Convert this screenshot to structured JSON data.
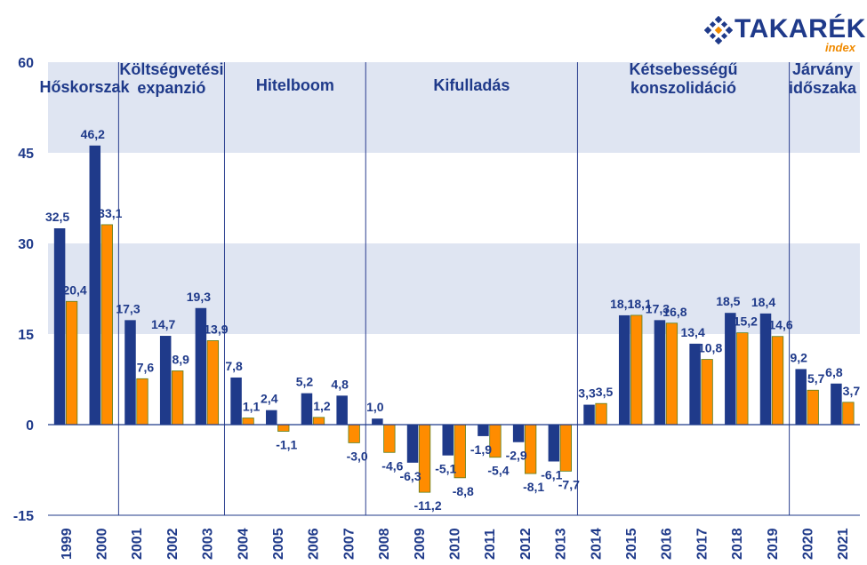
{
  "logo": {
    "brand": "TAKARÉK",
    "sub": "index",
    "accent": "#f08a00",
    "primary": "#1f3a8a"
  },
  "chart_data": {
    "type": "bar",
    "categories": [
      "1999",
      "2000",
      "2001",
      "2002",
      "2003",
      "2004",
      "2005",
      "2006",
      "2007",
      "2008",
      "2009",
      "2010",
      "2011",
      "2012",
      "2013",
      "2014",
      "2015",
      "2016",
      "2017",
      "2018",
      "2019",
      "2020",
      "2021"
    ],
    "series": [
      {
        "values": [
          32.5,
          46.2,
          17.3,
          14.7,
          19.3,
          7.8,
          2.4,
          5.2,
          4.8,
          1.0,
          -6.3,
          -5.1,
          -1.9,
          -2.9,
          -6.1,
          3.3,
          18.1,
          17.3,
          13.4,
          18.5,
          18.4,
          9.2,
          6.8
        ],
        "color": "#1f3a8a"
      },
      {
        "values": [
          20.4,
          33.1,
          7.6,
          8.9,
          13.9,
          1.1,
          -1.1,
          1.2,
          -3.0,
          -4.6,
          -11.2,
          -8.8,
          -5.4,
          -8.1,
          -7.7,
          3.5,
          18.1,
          16.8,
          10.8,
          15.2,
          14.6,
          5.7,
          3.7
        ],
        "color": "#ff8c00"
      }
    ],
    "labels": [
      [
        "32,5",
        "46,2",
        "17,3",
        "14,7",
        "19,3",
        "7,8",
        "2,4",
        "5,2",
        "4,8",
        "1,0",
        "-6,3",
        "-5,1",
        "-1,9",
        "-2,9",
        "-6,1",
        "3,3",
        "18,1",
        "17,3",
        "13,4",
        "18,5",
        "18,4",
        "9,2",
        "6,8"
      ],
      [
        "20,4",
        "33,1",
        "7,6",
        "8,9",
        "13,9",
        "1,1",
        "-1,1",
        "1,2",
        "-3,0",
        "-4,6",
        "-11,2",
        "-8,8",
        "-5,4",
        "-8,1",
        "-7,7",
        "3,5",
        "18,1",
        "16,8",
        "10,8",
        "15,2",
        "14,6",
        "5,7",
        "3,7"
      ]
    ],
    "ylim": [
      -15,
      60
    ],
    "yticks": [
      -15,
      0,
      15,
      30,
      45,
      60
    ],
    "ytick_labels": [
      "-15",
      "0",
      "15",
      "30",
      "45",
      "60"
    ],
    "bands": [
      [
        15,
        30
      ],
      [
        45,
        60
      ]
    ],
    "band_color": "#dfe5f2",
    "periods": [
      {
        "lines": [
          "Hőskorszak"
        ],
        "start": 0,
        "end": 1
      },
      {
        "lines": [
          "Költségvetési",
          "expanzió"
        ],
        "start": 2,
        "end": 4
      },
      {
        "lines": [
          "Hitelboom"
        ],
        "start": 5,
        "end": 8
      },
      {
        "lines": [
          "Kifulladás"
        ],
        "start": 9,
        "end": 14
      },
      {
        "lines": [
          "Kétsebességű",
          "konszolidáció"
        ],
        "start": 15,
        "end": 20
      },
      {
        "lines": [
          "Járvány",
          "időszaka"
        ],
        "start": 21,
        "end": 22
      }
    ],
    "divider_after": [
      1,
      4,
      8,
      14,
      20
    ]
  }
}
